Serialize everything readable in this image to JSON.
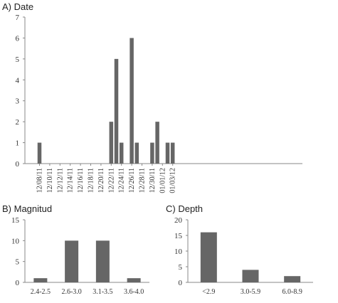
{
  "colors": {
    "bar": "#666666",
    "axis": "#888888"
  },
  "chart_data": [
    {
      "id": "date",
      "type": "bar",
      "title": "A) Date",
      "xlabel": "",
      "ylabel": "",
      "ylim": [
        0,
        7
      ],
      "y_ticks": [
        0,
        1,
        2,
        3,
        4,
        5,
        6,
        7
      ],
      "x_tick_labels": [
        "12/08/11",
        "12/10/11",
        "12/12/11",
        "12/14/11",
        "12/16/11",
        "12/18/11",
        "12/20/11",
        "12/22/11",
        "12/24/11",
        "12/26/11",
        "12/28/11",
        "12/30/11",
        "01/01/12",
        "01/03/12"
      ],
      "categories": [
        "12/08/11",
        "12/09/11",
        "12/10/11",
        "12/11/11",
        "12/12/11",
        "12/13/11",
        "12/14/11",
        "12/15/11",
        "12/16/11",
        "12/17/11",
        "12/18/11",
        "12/19/11",
        "12/20/11",
        "12/21/11",
        "12/22/11",
        "12/23/11",
        "12/24/11",
        "12/25/11",
        "12/26/11",
        "12/27/11",
        "12/28/11",
        "12/29/11",
        "12/30/11",
        "12/31/11",
        "01/01/12",
        "01/02/12",
        "01/03/12"
      ],
      "values": [
        1,
        0,
        0,
        0,
        0,
        0,
        0,
        0,
        0,
        0,
        0,
        0,
        0,
        0,
        2,
        5,
        1,
        0,
        6,
        1,
        0,
        0,
        1,
        2,
        0,
        1,
        1
      ]
    },
    {
      "id": "magnitud",
      "type": "bar",
      "title": "B) Magnitud",
      "xlabel": "",
      "ylabel": "",
      "ylim": [
        0,
        15
      ],
      "y_ticks": [
        0,
        5,
        10,
        15
      ],
      "categories": [
        "2.4-2.5",
        "2.6-3.0",
        "3.1-3.5",
        "3.6-4.0"
      ],
      "values": [
        1,
        10,
        10,
        1
      ]
    },
    {
      "id": "depth",
      "type": "bar",
      "title": "C) Depth",
      "xlabel": "",
      "ylabel": "",
      "ylim": [
        0,
        20
      ],
      "y_ticks": [
        0,
        5,
        10,
        15,
        20
      ],
      "categories": [
        "<2.9",
        "3.0-5.9",
        "6.0-8.9"
      ],
      "values": [
        16,
        4,
        2
      ]
    }
  ]
}
